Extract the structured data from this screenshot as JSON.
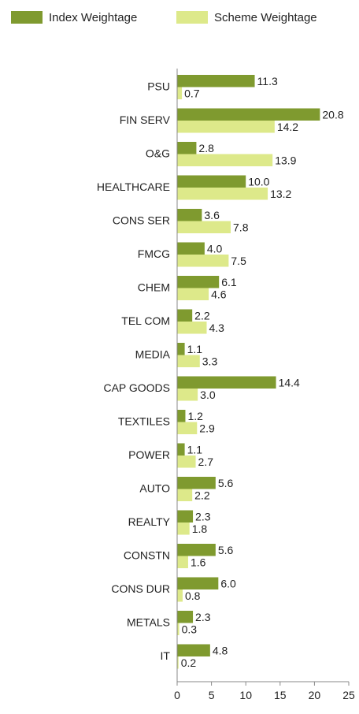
{
  "chart_data": {
    "type": "bar",
    "orientation": "horizontal",
    "categories": [
      "PSU",
      "FIN SERV",
      "O&G",
      "HEALTHCARE",
      "CONS SER",
      "FMCG",
      "CHEM",
      "TEL COM",
      "MEDIA",
      "CAP GOODS",
      "TEXTILES",
      "POWER",
      "AUTO",
      "REALTY",
      "CONSTN",
      "CONS DUR",
      "METALS",
      "IT"
    ],
    "series": [
      {
        "name": "Index Weightage",
        "color": "#7f9a2f",
        "values": [
          11.3,
          20.8,
          2.8,
          10.0,
          3.6,
          4.0,
          6.1,
          2.2,
          1.1,
          14.4,
          1.2,
          1.1,
          5.6,
          2.3,
          5.6,
          6.0,
          2.3,
          4.8
        ]
      },
      {
        "name": "Scheme Weightage",
        "color": "#dde98a",
        "values": [
          0.7,
          14.2,
          13.9,
          13.2,
          7.8,
          7.5,
          4.6,
          4.3,
          3.3,
          3.0,
          2.9,
          2.7,
          2.2,
          1.8,
          1.6,
          0.8,
          0.3,
          0.2
        ]
      }
    ],
    "xticks": [
      "0",
      "5",
      "10",
      "15",
      "20",
      "25"
    ],
    "xlim": [
      0,
      25
    ],
    "legend_position": "top-left",
    "grid": false
  }
}
